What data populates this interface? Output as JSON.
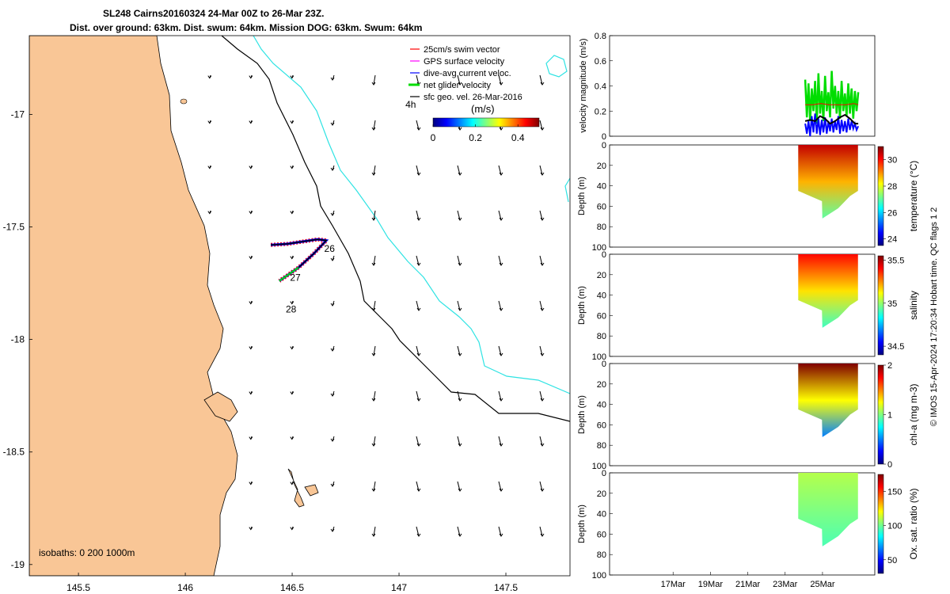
{
  "header": {
    "line1": "SL248 Cairns20160324 24-Mar 00Z to 26-Mar 23Z.",
    "line2": "Dist. over ground: 63km. Dist. swum: 64km. Mission DOG: 63km. Swum: 64km"
  },
  "colors": {
    "land": "#f9c696",
    "coast": "#000000",
    "isobath_200": "#000000",
    "isobath_1000": "#2ee3e3",
    "swim_vector": "#ff0000",
    "gps_velocity": "#ff00ff",
    "dive_avg": "#0000ff",
    "net_glider": "#00dd00",
    "sfc_geo": "#000000"
  },
  "chart_data": [
    {
      "type": "map",
      "xlim": [
        145.27,
        147.8
      ],
      "ylim": [
        -19.05,
        -16.65
      ],
      "x_ticks": [
        "145.5",
        "146",
        "146.5",
        "147",
        "147.5"
      ],
      "x_tick_values": [
        145.5,
        146.0,
        146.5,
        147.0,
        147.5
      ],
      "y_ticks": [
        "-17",
        "-17.5",
        "-18",
        "-18.5",
        "-19"
      ],
      "y_tick_values": [
        -17.0,
        -17.5,
        -18.0,
        -18.5,
        -19.0
      ],
      "isobath_note": "isobaths: 0   200  1000m",
      "track_labels": [
        "4h",
        "26",
        "27",
        "28"
      ],
      "track_label_positions": [
        [
          147.03,
          -16.97
        ],
        [
          146.65,
          -17.61
        ],
        [
          146.49,
          -17.74
        ],
        [
          146.47,
          -17.88
        ]
      ],
      "legend": {
        "entries": [
          "25cm/s swim vector",
          "GPS surface velocity",
          "dive-avg current veloc.",
          "net glider velocity",
          "sfc geo. vel. 26-Mar-2016"
        ],
        "placement": "top-right"
      },
      "colorbar": {
        "label": "(m/s)",
        "ticks": [
          "0",
          "0.2",
          "0.4"
        ],
        "tick_values": [
          0,
          0.2,
          0.4
        ],
        "range": [
          0,
          0.5
        ],
        "colormap": "jet"
      },
      "glider_track": [
        [
          146.4,
          -17.58
        ],
        [
          146.48,
          -17.575
        ],
        [
          146.55,
          -17.565
        ],
        [
          146.62,
          -17.555
        ],
        [
          146.66,
          -17.56
        ],
        [
          146.6,
          -17.62
        ],
        [
          146.53,
          -17.68
        ],
        [
          146.44,
          -17.74
        ]
      ]
    },
    {
      "type": "line",
      "ylabel": "velocity magnitude (m/s)",
      "ylim": [
        0,
        0.8
      ],
      "y_ticks": [
        "0",
        "0.2",
        "0.4",
        "0.6",
        "0.8"
      ],
      "xlim": [
        0,
        32
      ],
      "series": [
        {
          "color": "#00dd00",
          "x": [
            23.6,
            23.8,
            24.0,
            24.2,
            24.4,
            24.6,
            24.8,
            25.0,
            25.2,
            25.4,
            25.6,
            25.8,
            26.0,
            26.2,
            26.4,
            26.6,
            26.8,
            27.0,
            27.2,
            27.4,
            27.6,
            27.8,
            28.0,
            28.2,
            28.4,
            28.6,
            28.8,
            29.0,
            29.2,
            29.4,
            29.6,
            29.8,
            30.0
          ],
          "values": [
            0.45,
            0.15,
            0.42,
            0.12,
            0.38,
            0.2,
            0.44,
            0.1,
            0.5,
            0.18,
            0.36,
            0.12,
            0.48,
            0.2,
            0.35,
            0.15,
            0.52,
            0.22,
            0.4,
            0.18,
            0.36,
            0.14,
            0.44,
            0.2,
            0.34,
            0.16,
            0.42,
            0.18,
            0.38,
            0.14,
            0.36,
            0.2,
            0.35
          ]
        },
        {
          "color": "#0000ff",
          "x": [
            23.6,
            23.8,
            24.0,
            24.2,
            24.4,
            24.6,
            24.8,
            25.0,
            25.2,
            25.4,
            25.6,
            25.8,
            26.0,
            26.2,
            26.4,
            26.6,
            26.8,
            27.0,
            27.2,
            27.4,
            27.6,
            27.8,
            28.0,
            28.2,
            28.4,
            28.6,
            28.8,
            29.0,
            29.2,
            29.4,
            29.6,
            29.8,
            30.0
          ],
          "values": [
            0.1,
            0.02,
            0.12,
            0.0,
            0.16,
            0.03,
            0.18,
            0.02,
            0.14,
            0.01,
            0.13,
            0.03,
            0.15,
            0.02,
            0.12,
            0.04,
            0.14,
            0.03,
            0.12,
            0.05,
            0.16,
            0.02,
            0.13,
            0.04,
            0.12,
            0.03,
            0.14,
            0.05,
            0.12,
            0.06,
            0.1,
            0.05,
            0.08
          ]
        },
        {
          "color": "#000000",
          "x": [
            23.6,
            24.2,
            24.8,
            25.4,
            26.0,
            26.6,
            27.2,
            27.8,
            28.4,
            29.0,
            29.6,
            30.0
          ],
          "values": [
            0.12,
            0.13,
            0.12,
            0.16,
            0.14,
            0.1,
            0.12,
            0.15,
            0.17,
            0.14,
            0.1,
            0.1
          ]
        },
        {
          "color": "#ff0000",
          "x": [
            23.6,
            24.5,
            25.5,
            26.5,
            27.5,
            28.5,
            29.5,
            30.0
          ],
          "values": [
            0.25,
            0.25,
            0.26,
            0.25,
            0.25,
            0.25,
            0.26,
            0.25
          ]
        }
      ]
    },
    {
      "type": "heatmap",
      "ylabel": "Depth (m)",
      "colorbar_label": "temperature (°C)",
      "ylim": [
        100,
        0
      ],
      "y_ticks": [
        "0",
        "20",
        "40",
        "60",
        "80",
        "100"
      ],
      "colorbar_ticks": [
        "24",
        "26",
        "28",
        "30"
      ],
      "colorbar_range": [
        23.5,
        31
      ],
      "typical_range": [
        27,
        30.5
      ]
    },
    {
      "type": "heatmap",
      "ylabel": "Depth (m)",
      "colorbar_label": "salinity",
      "ylim": [
        100,
        0
      ],
      "y_ticks": [
        "0",
        "20",
        "40",
        "60",
        "80",
        "100"
      ],
      "colorbar_ticks": [
        "34.5",
        "35",
        "35.5"
      ],
      "colorbar_range": [
        34.4,
        35.55
      ],
      "typical_range": [
        34.9,
        35.4
      ]
    },
    {
      "type": "heatmap",
      "ylabel": "Depth (m)",
      "colorbar_label": "chl-a (mg m-3)",
      "ylim": [
        100,
        0
      ],
      "y_ticks": [
        "0",
        "20",
        "40",
        "60",
        "80",
        "100"
      ],
      "colorbar_ticks": [
        "0",
        "1",
        "2"
      ],
      "colorbar_range": [
        0,
        2
      ],
      "typical_range": [
        0.5,
        2
      ]
    },
    {
      "type": "heatmap",
      "ylabel": "Depth (m)",
      "colorbar_label": "Ox. sat. ratio (%)",
      "ylim": [
        100,
        0
      ],
      "y_ticks": [
        "0",
        "20",
        "40",
        "60",
        "80",
        "100"
      ],
      "colorbar_ticks": [
        "50",
        "100",
        "150"
      ],
      "colorbar_range": [
        30,
        175
      ],
      "typical_range": [
        95,
        110
      ],
      "x_ticks": [
        "17Mar",
        "19Mar",
        "21Mar",
        "23Mar",
        "25Mar"
      ],
      "x_tick_values": [
        17,
        19,
        21,
        23,
        25
      ],
      "xlim": [
        13.6,
        27.8
      ],
      "data_span": [
        23.7,
        26.9
      ]
    }
  ],
  "footer_note": "© IMOS 15-Apr-2024 17:20:34 Hobart time. QC flags 1  2"
}
